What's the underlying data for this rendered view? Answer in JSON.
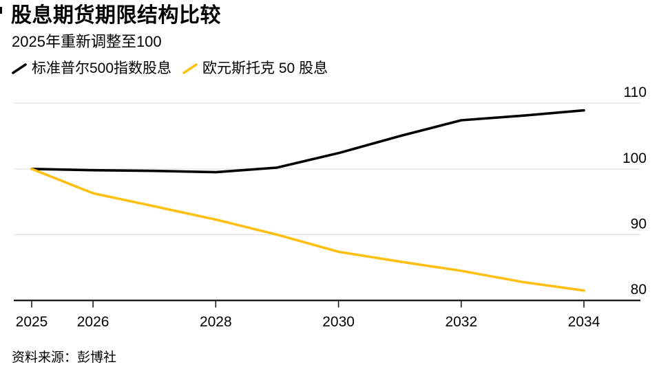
{
  "header": {
    "title": "股息期货期限结构比较",
    "subtitle": "2025年重新调整至100"
  },
  "legend": {
    "items": [
      {
        "label": "标准普尔500指数股息",
        "color": "#000000"
      },
      {
        "label": "欧元斯托克 50 股息",
        "color": "#FDC011"
      }
    ]
  },
  "footer": {
    "source_label": "资料来源：彭博社"
  },
  "colors": {
    "background": "#FFFFFF",
    "text": "#000000",
    "gridline": "#E3E3E3",
    "axis_line": "#1A1A1A",
    "tick": "#1A1A1A",
    "sp500_line": "#000000",
    "eurostoxx_line": "#FDC011"
  },
  "chart_data": {
    "type": "line",
    "title": "股息期货期限结构比较",
    "subtitle": "2025年重新调整至100",
    "x": [
      2025,
      2026,
      2027,
      2028,
      2029,
      2030,
      2031,
      2032,
      2033,
      2034
    ],
    "series": [
      {
        "name": "标准普尔500指数股息",
        "color": "#000000",
        "values": [
          100,
          99.8,
          99.7,
          99.5,
          100.2,
          102.4,
          105.0,
          107.4,
          108.1,
          108.9
        ]
      },
      {
        "name": "欧元斯托克 50 股息",
        "color": "#FDC011",
        "values": [
          100,
          96.3,
          94.3,
          92.3,
          90.0,
          87.4,
          85.9,
          84.5,
          82.8,
          81.5
        ]
      }
    ],
    "x_ticks": [
      2025,
      2026,
      2028,
      2030,
      2032,
      2034
    ],
    "y_ticks": [
      80,
      90,
      100,
      110
    ],
    "gridline_values": [
      90,
      100,
      110
    ],
    "baseline_value": 80,
    "xlim": [
      2024.7,
      2034.9
    ],
    "ylim": [
      79,
      111.5
    ],
    "grid": "horizontal",
    "y_axis_side": "right",
    "legend_position": "top-left",
    "source": "资料来源：彭博社"
  }
}
